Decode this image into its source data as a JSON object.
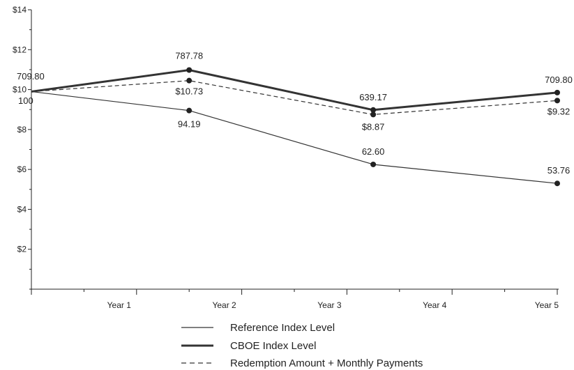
{
  "chart_data": {
    "type": "line",
    "title": "",
    "xlabel": "",
    "ylabel": "",
    "categories": [
      "",
      "Year 1",
      "Year 2",
      "Year 3",
      "Year 4",
      "Year 5"
    ],
    "x_ticks": [
      "Year 1",
      "Year 2",
      "Year 3",
      "Year 4",
      "Year 5"
    ],
    "y_ticks": [
      "$2",
      "$4",
      "$6",
      "$8",
      "$10",
      "$12",
      "$14"
    ],
    "ylim": [
      0,
      14
    ],
    "grid": false,
    "legend_position": "bottom-center",
    "series": [
      {
        "name": "Reference Index Level",
        "style": "thin-solid",
        "color": "#333333",
        "points": [
          {
            "x": 0,
            "y": 9.9,
            "label": "100"
          },
          {
            "x": 1.5,
            "y": 8.95,
            "label": "94.19"
          },
          {
            "x": 3.25,
            "y": 6.25,
            "label": "62.60"
          },
          {
            "x": 5,
            "y": 5.3,
            "label": "53.76"
          }
        ]
      },
      {
        "name": "CBOE Index Level",
        "style": "thick-solid",
        "color": "#333333",
        "points": [
          {
            "x": 0,
            "y": 9.9,
            "label": "709.80"
          },
          {
            "x": 1.5,
            "y": 10.98,
            "label": "787.78"
          },
          {
            "x": 3.25,
            "y": 8.98,
            "label": "639.17"
          },
          {
            "x": 5,
            "y": 9.85,
            "label": "709.80"
          }
        ]
      },
      {
        "name": "Redemption Amount + Monthly Payments",
        "style": "dashed",
        "color": "#333333",
        "points": [
          {
            "x": 0,
            "y": 9.9,
            "label": ""
          },
          {
            "x": 1.5,
            "y": 10.45,
            "label": "$10.73"
          },
          {
            "x": 3.25,
            "y": 8.75,
            "label": "$8.87"
          },
          {
            "x": 5,
            "y": 9.45,
            "label": "$9.32"
          }
        ]
      }
    ]
  }
}
